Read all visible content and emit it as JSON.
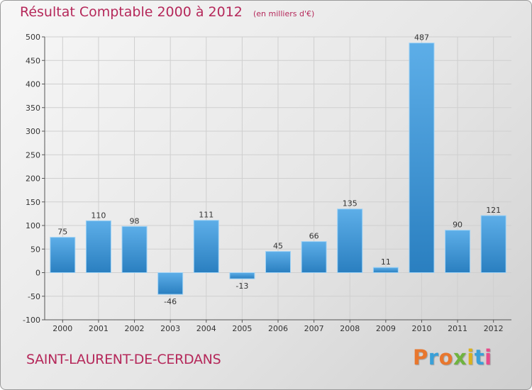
{
  "header": {
    "title": "Résultat Comptable 2000 à 2012",
    "subtitle": "(en milliers d'€)"
  },
  "footer": {
    "commune": "SAINT-LAURENT-DE-CERDANS",
    "logo": "Proxiti"
  },
  "colors": {
    "title": "#b5285a",
    "bar_top": "#5daee8",
    "bar_bottom": "#2a7fc0",
    "grid": "#cfcfcf",
    "axis": "#555555"
  },
  "chart_data": {
    "type": "bar",
    "title": "Résultat Comptable 2000 à 2012",
    "subtitle": "(en milliers d'€)",
    "xlabel": "",
    "ylabel": "",
    "categories": [
      "2000",
      "2001",
      "2002",
      "2003",
      "2004",
      "2005",
      "2006",
      "2007",
      "2008",
      "2009",
      "2010",
      "2011",
      "2012"
    ],
    "values": [
      75,
      110,
      98,
      -46,
      111,
      -13,
      45,
      66,
      135,
      11,
      487,
      90,
      121
    ],
    "ylim": [
      -100,
      500
    ],
    "yticks": [
      -100,
      -50,
      0,
      50,
      100,
      150,
      200,
      250,
      300,
      350,
      400,
      450,
      500
    ],
    "grid": true,
    "legend": "none"
  }
}
